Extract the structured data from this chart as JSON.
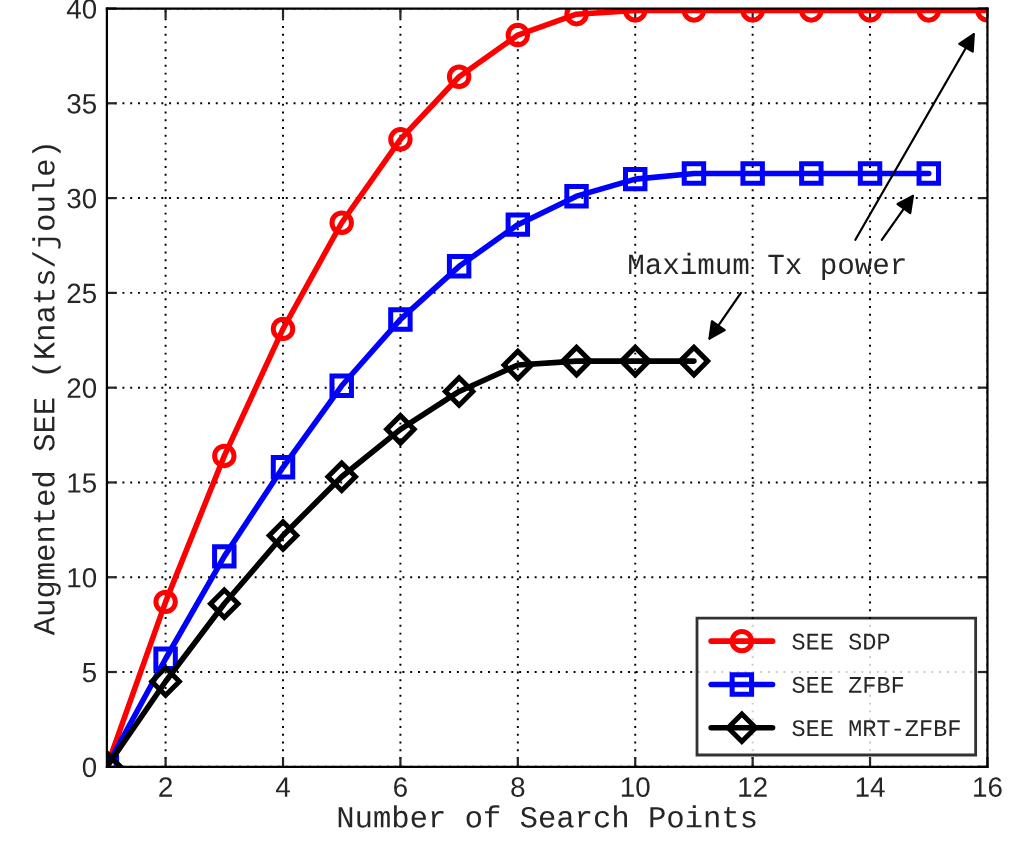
{
  "chart_data": {
    "type": "line",
    "xlabel": "Number of Search Points",
    "ylabel": "Augmented SEE (Knats/joule)",
    "xlim": [
      1,
      16
    ],
    "xticks": [
      2,
      4,
      6,
      8,
      10,
      12,
      14,
      16
    ],
    "ylim": [
      0,
      40
    ],
    "yticks": [
      0,
      5,
      10,
      15,
      20,
      25,
      30,
      35,
      40
    ],
    "grid": true,
    "legend": "bottom right",
    "line_style": "solid",
    "annotations": [
      "Maximum Tx power"
    ],
    "series": [
      {
        "name": "SEE SDP",
        "color": "#ff0000",
        "marker": "circle",
        "x": [
          1,
          2,
          3,
          4,
          5,
          6,
          7,
          8,
          9,
          10,
          11,
          12,
          13,
          14,
          15,
          16
        ],
        "values": [
          0,
          8.7,
          16.4,
          23.1,
          28.7,
          33.1,
          36.4,
          38.6,
          39.7,
          39.9,
          39.9,
          39.9,
          39.9,
          39.9,
          39.9,
          39.9
        ]
      },
      {
        "name": "SEE ZFBF",
        "color": "#0000ff",
        "marker": "square",
        "x": [
          1,
          2,
          3,
          4,
          5,
          6,
          7,
          8,
          9,
          10,
          11,
          12,
          13,
          14,
          15
        ],
        "values": [
          0,
          5.7,
          11.1,
          15.8,
          20.1,
          23.6,
          26.4,
          28.6,
          30.1,
          31.0,
          31.3,
          31.3,
          31.3,
          31.3,
          31.3
        ]
      },
      {
        "name": "SEE MRT-ZFBF",
        "color": "#000000",
        "marker": "diamond",
        "x": [
          1,
          2,
          3,
          4,
          5,
          6,
          7,
          8,
          9,
          10,
          11
        ],
        "values": [
          0,
          4.5,
          8.6,
          12.2,
          15.3,
          17.8,
          19.8,
          21.2,
          21.4,
          21.4,
          21.4
        ]
      }
    ]
  }
}
